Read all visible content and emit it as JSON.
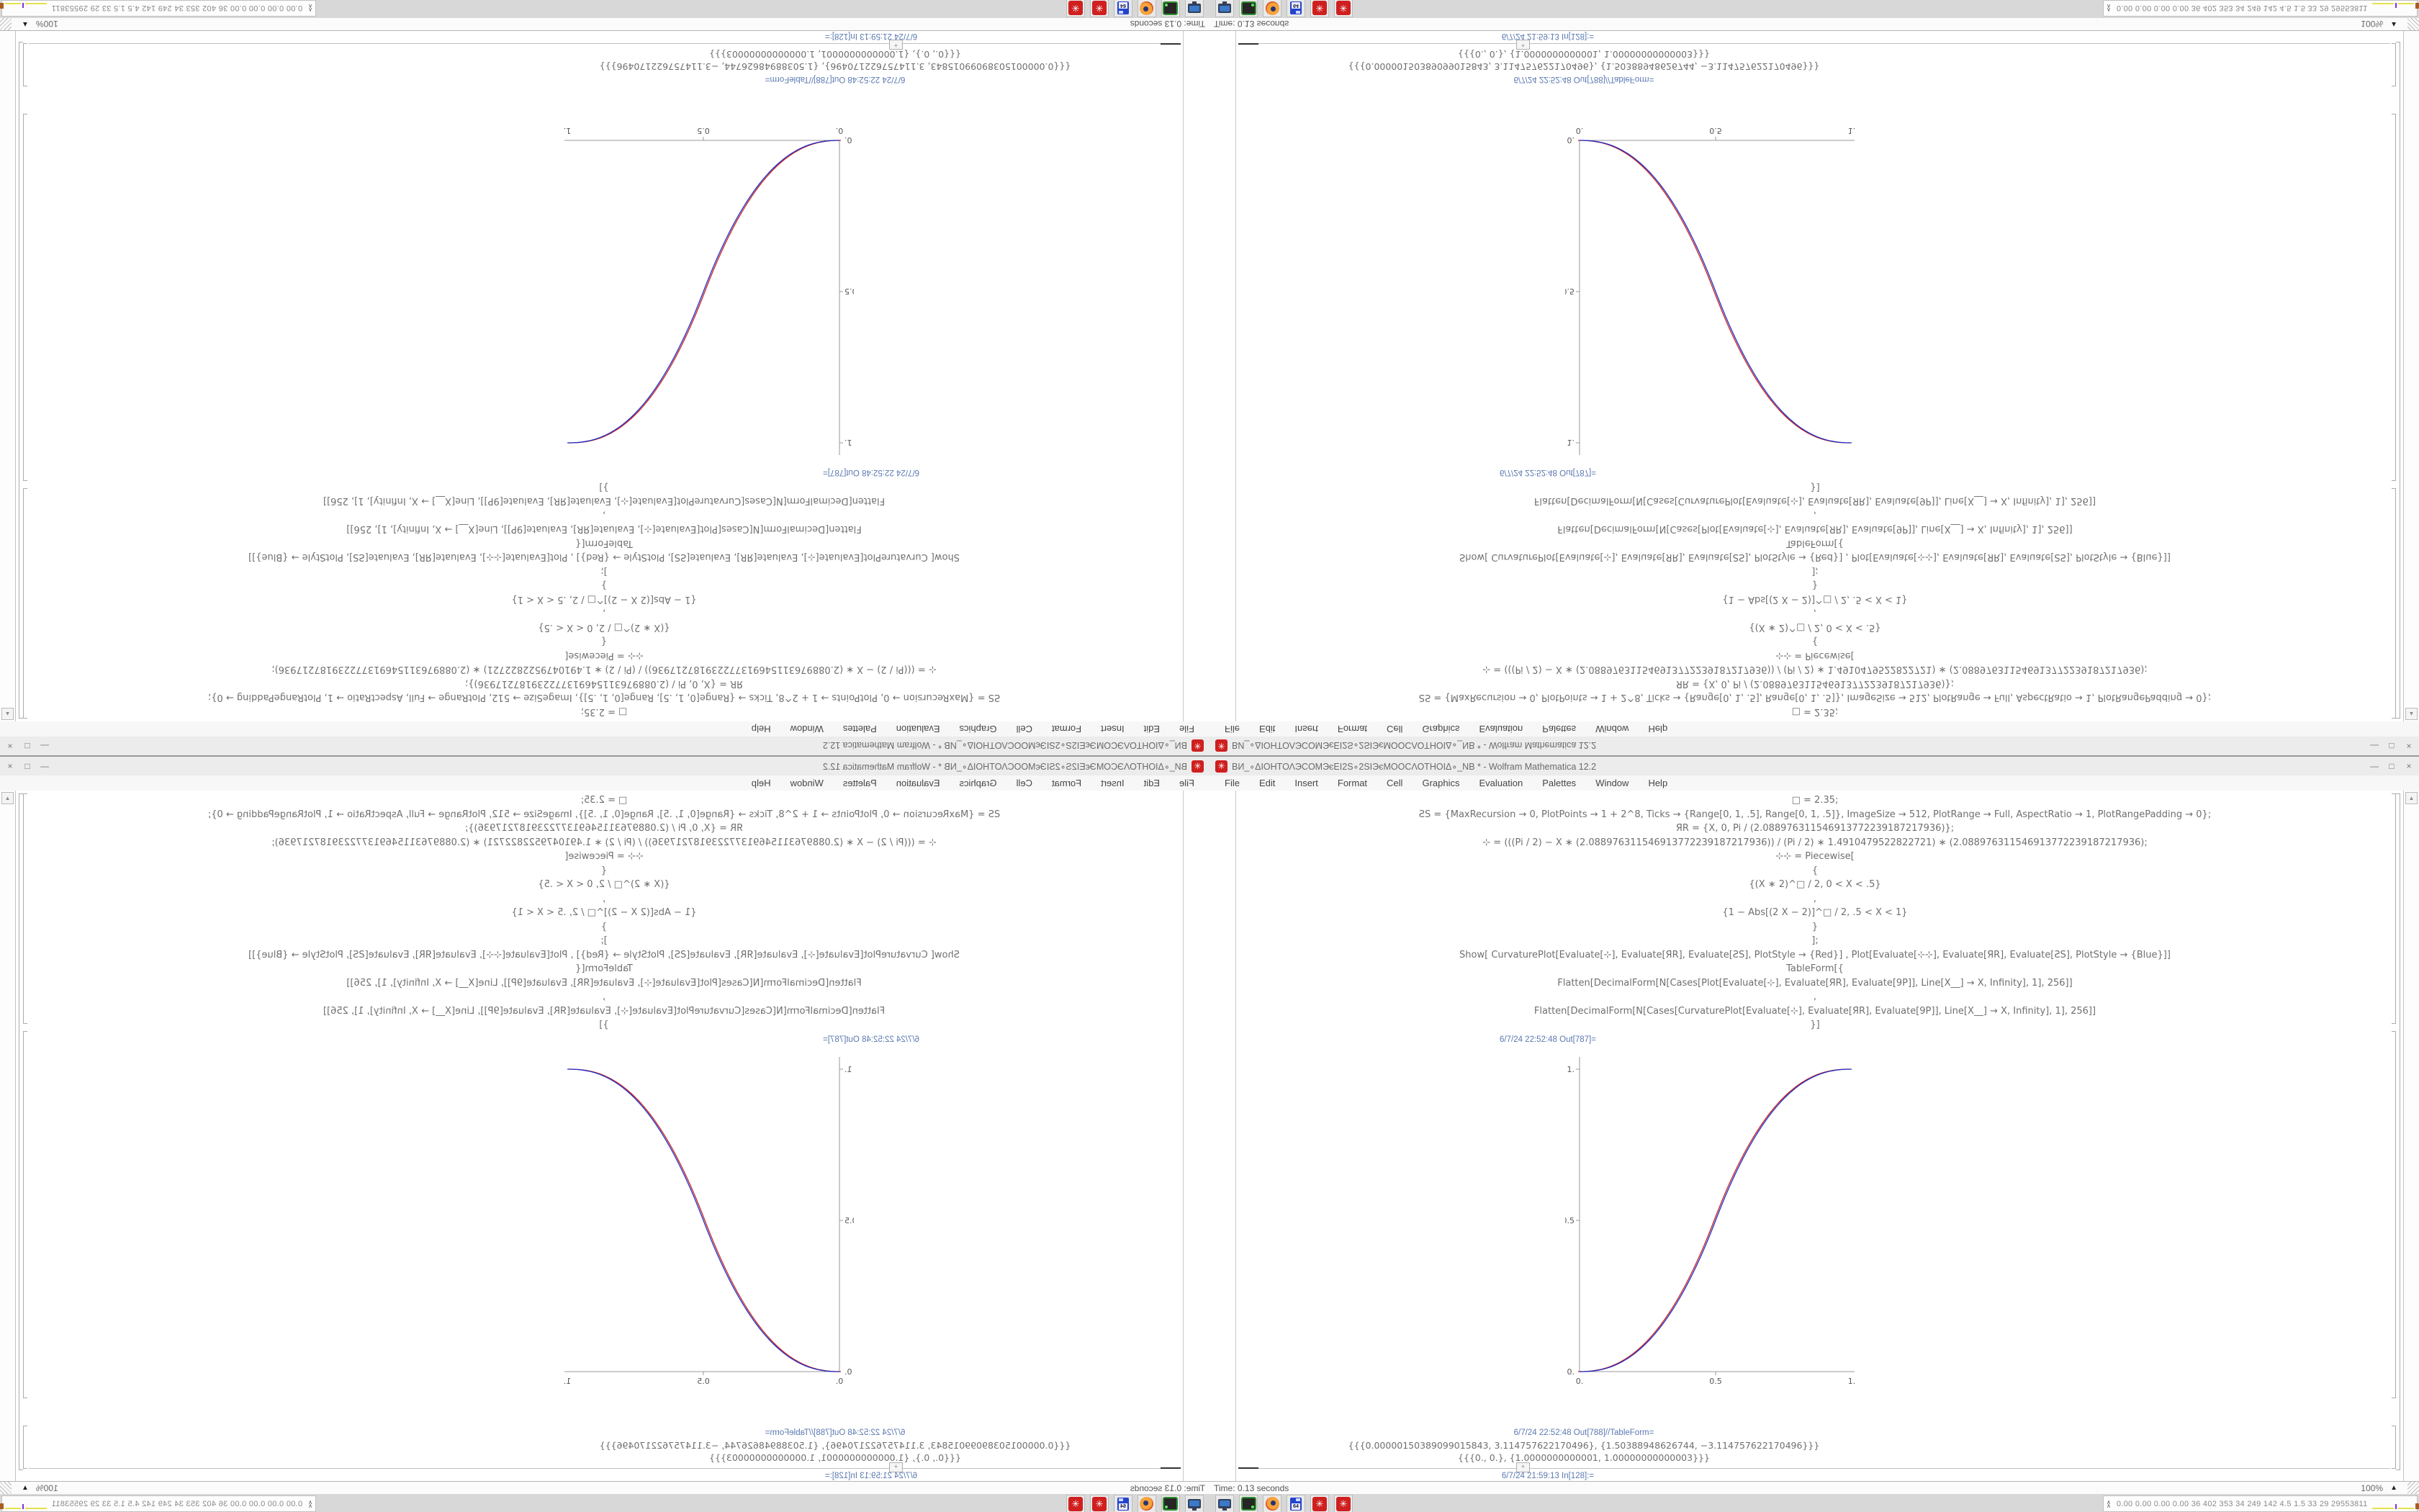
{
  "chart_data": {
    "type": "line",
    "title": "",
    "xlabel": "",
    "ylabel": "",
    "xlim": [
      0,
      1
    ],
    "ylim": [
      0,
      1
    ],
    "grid": false,
    "legend_position": "none",
    "exponent": 2.35,
    "xticks": [
      "0.",
      "0.5",
      "1."
    ],
    "yticks": [
      "0.",
      "0.5",
      "1."
    ],
    "series": [
      {
        "name": "CurvaturePlot[⊹] PlotStyle Red",
        "color": "#cc2020",
        "points": [
          [
            0,
            0
          ],
          [
            0.1,
            0.011
          ],
          [
            0.2,
            0.058
          ],
          [
            0.3,
            0.151
          ],
          [
            0.4,
            0.296
          ],
          [
            0.5,
            0.5
          ],
          [
            0.6,
            0.704
          ],
          [
            0.7,
            0.849
          ],
          [
            0.8,
            0.942
          ],
          [
            0.9,
            0.989
          ],
          [
            1,
            1
          ]
        ]
      },
      {
        "name": "Plot[⊹⊹] PlotStyle Blue",
        "color": "#2030c8",
        "points": [
          [
            0,
            0
          ],
          [
            0.1,
            0.011
          ],
          [
            0.2,
            0.058
          ],
          [
            0.3,
            0.151
          ],
          [
            0.4,
            0.296
          ],
          [
            0.5,
            0.5
          ],
          [
            0.6,
            0.704
          ],
          [
            0.7,
            0.849
          ],
          [
            0.8,
            0.942
          ],
          [
            0.9,
            0.989
          ],
          [
            1,
            1
          ]
        ]
      }
    ]
  },
  "window": {
    "title": "ВИ_∘ΔΙΟΗΤΟΛЭСΟΜЭєЕΙ2S∘2SΙЭєΜΟΟСΛΟΤΗΟΙΔ∘_ΝВ * - Wolfram Mathematica 12.2",
    "app_icon": "✳",
    "menu": [
      "File",
      "Edit",
      "Insert",
      "Format",
      "Cell",
      "Graphics",
      "Evaluation",
      "Palettes",
      "Window",
      "Help"
    ],
    "controls": {
      "minimize": "—",
      "maximize": "□",
      "close": "×"
    },
    "status": {
      "time": "Time: 0.13 seconds",
      "zoom": "100%",
      "zoom_arrow": "▲"
    },
    "scroll_up_glyph": "▲"
  },
  "notebook": {
    "code_lines": [
      "□ = 2.35;",
      "ƧS = {MaxRecursion → 0, PlotPoints → 1 + 2^8, Ticks → {Range[0, 1, .5], Range[0, 1, .5]}, ImageSize → 512, PlotRange → Full, AspectRatio → 1, PlotRangePadding → 0};",
      "ЯR = {X, 0, Pi / (2.088976311546913772239187217936)};",
      "⊹ = (((Pi / 2) − X ∗ (2.088976311546913772239187217936)) / (Pi / 2) ∗ 1.4910479522822721) ∗ (2.088976311546913772239187217936);",
      "⊹⊹ = Piecewise[",
      "{",
      "{(X ∗ 2)^□ / 2, 0 < X < .5}",
      ",",
      "{1 − Abs[(2 X − 2)]^□ / 2, .5 < X < 1}",
      "}",
      "];",
      "Show[   CurvaturePlot[Evaluate[⊹], Evaluate[ЯR], Evaluate[ƧS], PlotStyle → {Red}]   ,   Plot[Evaluate[⊹⊹], Evaluate[ЯR], Evaluate[ƧS], PlotStyle → {Blue}]]",
      "TableForm[{",
      "Flatten[DecimalForm[N[Cases[Plot[Evaluate[⊹], Evaluate[ЯR], Evaluate[9P]], Line[X__] → X, Infinity], 1], 256]]",
      ",",
      "Flatten[DecimalForm[N[Cases[CurvaturePlot[Evaluate[⊹], Evaluate[ЯR], Evaluate[9P]], Line[X__] → X, Infinity], 1], 256]]",
      "}]"
    ],
    "out787_label": "6/7/24 22:52:48 Out[787]=",
    "out788_label": "6/7/24 22:52:48 Out[788]//TableForm=",
    "table_rows": [
      "{{{0.00000150389099015843, 3.114757622170496}, {1.50388948626744, −3.114757622170496}}}",
      "{{{0., 0.}, {1.0000000000001, 1.00000000000003}}}"
    ],
    "in128_label": "6/7/24 21:59:13 In[128]:=",
    "insert_plus": "+"
  },
  "taskbar": {
    "icons": [
      {
        "name": "screenshot-tool"
      },
      {
        "name": "green-device"
      },
      {
        "name": "firefox"
      },
      {
        "name": "floppy-64",
        "label": "64"
      },
      {
        "name": "gear-red",
        "glyph": "✳"
      },
      {
        "name": "gear-red",
        "glyph": "✳"
      }
    ],
    "tray_chevron": "∧",
    "tray_numbers": "0.00 0.00 0.00 0.00   36   402 353   34   249 142   4.5   1.5   33   29   29553811",
    "tray_colors": {
      "yellow": "#e6e24e",
      "purple": "#8a2be2",
      "brown": "#a85c1e",
      "navy": "#1d3f8f",
      "green": "#3db53d"
    }
  }
}
